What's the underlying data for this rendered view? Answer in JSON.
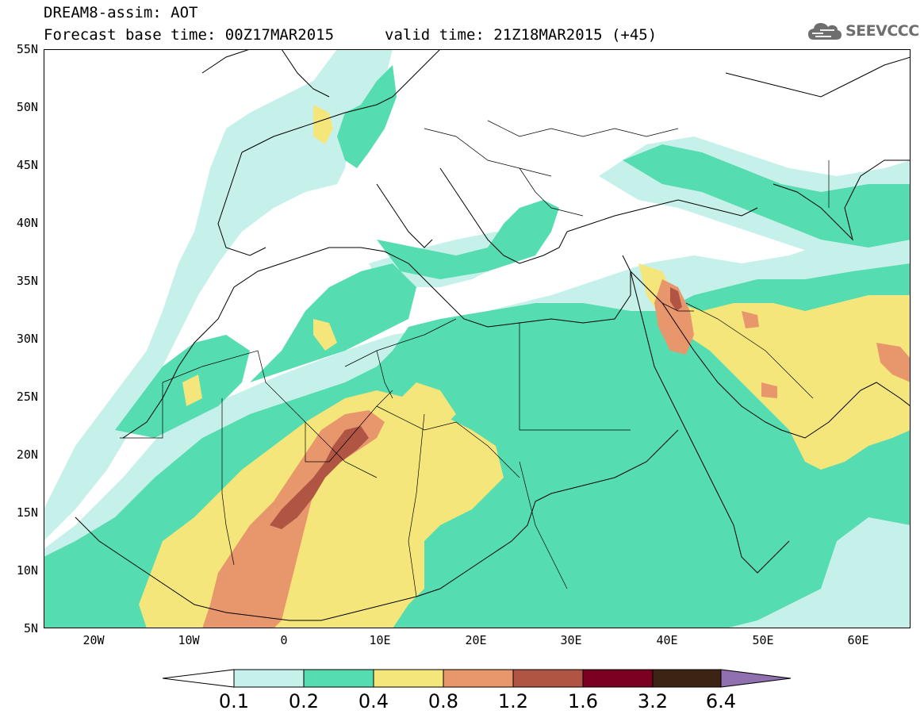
{
  "header": {
    "line1": "DREAM8-assim: AOT",
    "line2": "Forecast base time: 00Z17MAR2015",
    "line3": "valid time: 21Z18MAR2015 (+45)"
  },
  "logo": {
    "text": "SEEVCCC",
    "icon": "cloud-icon"
  },
  "map": {
    "lat_labels": [
      "55N",
      "50N",
      "45N",
      "40N",
      "35N",
      "30N",
      "25N",
      "20N",
      "15N",
      "10N",
      "5N"
    ],
    "lon_labels": [
      "20W",
      "10W",
      "0",
      "10E",
      "20E",
      "30E",
      "40E",
      "50E",
      "60E"
    ],
    "lat_range": [
      5,
      55
    ],
    "lon_range": [
      -25,
      65
    ]
  },
  "colorbar": {
    "labels": [
      "0.1",
      "0.2",
      "0.4",
      "0.8",
      "1.2",
      "1.6",
      "3.2",
      "6.4"
    ],
    "colors": [
      "#ffffff",
      "#c6f1ea",
      "#55dcb0",
      "#f5e67c",
      "#e8966c",
      "#b05444",
      "#7a0020",
      "#3b2414",
      "#9070b0"
    ]
  },
  "colors": {
    "level_0_1": "#c6f1ea",
    "level_0_2": "#55dcb0",
    "level_0_4": "#f5e67c",
    "level_0_8": "#e8966c",
    "level_1_2": "#b05444"
  }
}
